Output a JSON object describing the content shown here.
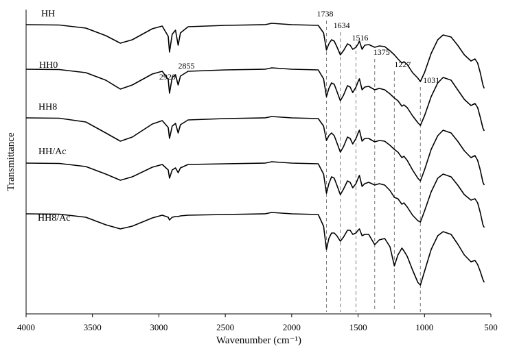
{
  "chart_data": {
    "type": "line",
    "title": "",
    "xlabel": "Wavenumber (cm⁻¹)",
    "ylabel": "Transmittance",
    "xlim": [
      4000,
      500
    ],
    "x_reversed": true,
    "y_ticks": false,
    "grid": false,
    "legend": "none",
    "x_ticks": [
      4000,
      3500,
      3000,
      2500,
      2000,
      1500,
      1000,
      500
    ],
    "x_tick_labels": [
      "4000",
      "3500",
      "3000",
      "2500",
      "2000",
      "1500",
      "1000",
      "500"
    ],
    "reference_lines": [
      {
        "x": 1738,
        "label": "1738"
      },
      {
        "x": 1634,
        "label": "1634"
      },
      {
        "x": 1516,
        "label": "1516"
      },
      {
        "x": 1375,
        "label": "1375"
      },
      {
        "x": 1227,
        "label": "1227"
      },
      {
        "x": 1031,
        "label": "1031"
      }
    ],
    "annotations": [
      {
        "x": 2920,
        "series": "HH",
        "text": "2920"
      },
      {
        "x": 2855,
        "series": "HH",
        "text": "2855"
      }
    ],
    "series": [
      {
        "name": "HH",
        "points": [
          [
            4000,
            0.0
          ],
          [
            3750,
            -0.5
          ],
          [
            3550,
            -5
          ],
          [
            3400,
            -16
          ],
          [
            3290,
            -27
          ],
          [
            3200,
            -22
          ],
          [
            3050,
            -6
          ],
          [
            2975,
            -2
          ],
          [
            2930,
            -17
          ],
          [
            2920,
            -40
          ],
          [
            2900,
            -14
          ],
          [
            2875,
            -8
          ],
          [
            2855,
            -30
          ],
          [
            2838,
            -12
          ],
          [
            2780,
            -3
          ],
          [
            2500,
            -1
          ],
          [
            2200,
            0
          ],
          [
            2150,
            2
          ],
          [
            2000,
            0
          ],
          [
            1800,
            -1
          ],
          [
            1760,
            -12
          ],
          [
            1738,
            -37
          ],
          [
            1720,
            -28
          ],
          [
            1700,
            -22
          ],
          [
            1680,
            -24
          ],
          [
            1660,
            -32
          ],
          [
            1634,
            -44
          ],
          [
            1610,
            -38
          ],
          [
            1580,
            -28
          ],
          [
            1560,
            -30
          ],
          [
            1540,
            -36
          ],
          [
            1516,
            -33
          ],
          [
            1500,
            -28
          ],
          [
            1490,
            -24
          ],
          [
            1470,
            -36
          ],
          [
            1450,
            -30
          ],
          [
            1420,
            -29
          ],
          [
            1375,
            -33
          ],
          [
            1340,
            -31
          ],
          [
            1300,
            -32
          ],
          [
            1260,
            -38
          ],
          [
            1227,
            -44
          ],
          [
            1200,
            -50
          ],
          [
            1170,
            -56
          ],
          [
            1155,
            -54
          ],
          [
            1130,
            -58
          ],
          [
            1090,
            -70
          ],
          [
            1050,
            -78
          ],
          [
            1031,
            -83
          ],
          [
            1000,
            -70
          ],
          [
            950,
            -42
          ],
          [
            900,
            -22
          ],
          [
            860,
            -15
          ],
          [
            800,
            -18
          ],
          [
            750,
            -30
          ],
          [
            700,
            -44
          ],
          [
            650,
            -53
          ],
          [
            620,
            -50
          ],
          [
            600,
            -56
          ],
          [
            580,
            -70
          ],
          [
            560,
            -88
          ],
          [
            550,
            -93
          ]
        ]
      },
      {
        "name": "HH0",
        "points": [
          [
            4000,
            0.0
          ],
          [
            3750,
            -0.5
          ],
          [
            3550,
            -5
          ],
          [
            3400,
            -16
          ],
          [
            3290,
            -29
          ],
          [
            3200,
            -23
          ],
          [
            3050,
            -7
          ],
          [
            2975,
            -3
          ],
          [
            2930,
            -15
          ],
          [
            2920,
            -35
          ],
          [
            2900,
            -12
          ],
          [
            2875,
            -8
          ],
          [
            2855,
            -23
          ],
          [
            2838,
            -10
          ],
          [
            2780,
            -3
          ],
          [
            2500,
            -1
          ],
          [
            2200,
            0
          ],
          [
            2150,
            2
          ],
          [
            2000,
            0
          ],
          [
            1800,
            -1
          ],
          [
            1760,
            -14
          ],
          [
            1738,
            -40
          ],
          [
            1720,
            -28
          ],
          [
            1700,
            -20
          ],
          [
            1680,
            -22
          ],
          [
            1660,
            -32
          ],
          [
            1634,
            -46
          ],
          [
            1610,
            -38
          ],
          [
            1580,
            -24
          ],
          [
            1560,
            -26
          ],
          [
            1540,
            -34
          ],
          [
            1516,
            -26
          ],
          [
            1500,
            -18
          ],
          [
            1490,
            -14
          ],
          [
            1470,
            -30
          ],
          [
            1450,
            -26
          ],
          [
            1420,
            -25
          ],
          [
            1375,
            -30
          ],
          [
            1340,
            -28
          ],
          [
            1300,
            -30
          ],
          [
            1260,
            -36
          ],
          [
            1227,
            -42
          ],
          [
            1200,
            -46
          ],
          [
            1170,
            -54
          ],
          [
            1155,
            -52
          ],
          [
            1130,
            -56
          ],
          [
            1090,
            -68
          ],
          [
            1050,
            -78
          ],
          [
            1031,
            -82
          ],
          [
            1000,
            -68
          ],
          [
            950,
            -40
          ],
          [
            900,
            -20
          ],
          [
            860,
            -12
          ],
          [
            800,
            -16
          ],
          [
            750,
            -30
          ],
          [
            700,
            -44
          ],
          [
            650,
            -53
          ],
          [
            620,
            -50
          ],
          [
            600,
            -56
          ],
          [
            580,
            -70
          ],
          [
            560,
            -86
          ],
          [
            550,
            -90
          ]
        ]
      },
      {
        "name": "HH8",
        "points": [
          [
            4000,
            0.0
          ],
          [
            3750,
            -0.5
          ],
          [
            3550,
            -6
          ],
          [
            3400,
            -22
          ],
          [
            3290,
            -34
          ],
          [
            3200,
            -28
          ],
          [
            3050,
            -9
          ],
          [
            2975,
            -4
          ],
          [
            2930,
            -14
          ],
          [
            2920,
            -30
          ],
          [
            2900,
            -12
          ],
          [
            2875,
            -8
          ],
          [
            2855,
            -22
          ],
          [
            2838,
            -10
          ],
          [
            2780,
            -3
          ],
          [
            2500,
            -1
          ],
          [
            2200,
            0
          ],
          [
            2150,
            2
          ],
          [
            2000,
            0
          ],
          [
            1800,
            -1
          ],
          [
            1760,
            -12
          ],
          [
            1738,
            -33
          ],
          [
            1720,
            -26
          ],
          [
            1700,
            -22
          ],
          [
            1680,
            -26
          ],
          [
            1660,
            -36
          ],
          [
            1634,
            -50
          ],
          [
            1610,
            -42
          ],
          [
            1580,
            -28
          ],
          [
            1560,
            -30
          ],
          [
            1540,
            -38
          ],
          [
            1516,
            -30
          ],
          [
            1500,
            -22
          ],
          [
            1490,
            -18
          ],
          [
            1470,
            -34
          ],
          [
            1450,
            -30
          ],
          [
            1420,
            -30
          ],
          [
            1375,
            -35
          ],
          [
            1340,
            -33
          ],
          [
            1300,
            -34
          ],
          [
            1260,
            -40
          ],
          [
            1227,
            -46
          ],
          [
            1200,
            -50
          ],
          [
            1170,
            -58
          ],
          [
            1155,
            -56
          ],
          [
            1130,
            -62
          ],
          [
            1090,
            -76
          ],
          [
            1050,
            -88
          ],
          [
            1031,
            -92
          ],
          [
            1000,
            -76
          ],
          [
            950,
            -46
          ],
          [
            900,
            -26
          ],
          [
            860,
            -18
          ],
          [
            800,
            -22
          ],
          [
            750,
            -34
          ],
          [
            700,
            -48
          ],
          [
            650,
            -58
          ],
          [
            620,
            -55
          ],
          [
            600,
            -62
          ],
          [
            580,
            -76
          ],
          [
            560,
            -94
          ],
          [
            550,
            -98
          ]
        ]
      },
      {
        "name": "HH/Ac",
        "points": [
          [
            4000,
            0.0
          ],
          [
            3750,
            -0.5
          ],
          [
            3550,
            -5
          ],
          [
            3400,
            -16
          ],
          [
            3290,
            -25
          ],
          [
            3200,
            -20
          ],
          [
            3050,
            -6
          ],
          [
            2975,
            -2
          ],
          [
            2930,
            -10
          ],
          [
            2920,
            -22
          ],
          [
            2900,
            -10
          ],
          [
            2875,
            -7
          ],
          [
            2855,
            -14
          ],
          [
            2838,
            -7
          ],
          [
            2780,
            -2
          ],
          [
            2500,
            -1
          ],
          [
            2200,
            0
          ],
          [
            2150,
            2
          ],
          [
            2000,
            0
          ],
          [
            1800,
            -1
          ],
          [
            1760,
            -16
          ],
          [
            1738,
            -44
          ],
          [
            1720,
            -30
          ],
          [
            1700,
            -20
          ],
          [
            1680,
            -22
          ],
          [
            1660,
            -32
          ],
          [
            1634,
            -46
          ],
          [
            1610,
            -38
          ],
          [
            1580,
            -26
          ],
          [
            1560,
            -28
          ],
          [
            1540,
            -36
          ],
          [
            1516,
            -30
          ],
          [
            1500,
            -22
          ],
          [
            1490,
            -18
          ],
          [
            1470,
            -34
          ],
          [
            1450,
            -30
          ],
          [
            1420,
            -28
          ],
          [
            1375,
            -32
          ],
          [
            1340,
            -30
          ],
          [
            1300,
            -32
          ],
          [
            1260,
            -40
          ],
          [
            1227,
            -50
          ],
          [
            1200,
            -52
          ],
          [
            1170,
            -60
          ],
          [
            1155,
            -58
          ],
          [
            1130,
            -64
          ],
          [
            1090,
            -76
          ],
          [
            1050,
            -84
          ],
          [
            1031,
            -86
          ],
          [
            1000,
            -70
          ],
          [
            950,
            -42
          ],
          [
            900,
            -22
          ],
          [
            860,
            -16
          ],
          [
            800,
            -20
          ],
          [
            750,
            -32
          ],
          [
            700,
            -46
          ],
          [
            650,
            -54
          ],
          [
            620,
            -52
          ],
          [
            600,
            -58
          ],
          [
            580,
            -72
          ],
          [
            560,
            -90
          ],
          [
            550,
            -94
          ]
        ]
      },
      {
        "name": "HH8/Ac",
        "points": [
          [
            4000,
            0.0
          ],
          [
            3750,
            -0.5
          ],
          [
            3550,
            -5
          ],
          [
            3400,
            -16
          ],
          [
            3290,
            -22
          ],
          [
            3200,
            -18
          ],
          [
            3050,
            -6
          ],
          [
            2975,
            -2
          ],
          [
            2930,
            -5
          ],
          [
            2920,
            -9
          ],
          [
            2900,
            -5
          ],
          [
            2875,
            -4
          ],
          [
            2855,
            -4
          ],
          [
            2838,
            -3
          ],
          [
            2780,
            -2
          ],
          [
            2500,
            -1
          ],
          [
            2200,
            0
          ],
          [
            2150,
            2
          ],
          [
            2000,
            0
          ],
          [
            1800,
            -1
          ],
          [
            1760,
            -18
          ],
          [
            1738,
            -52
          ],
          [
            1720,
            -36
          ],
          [
            1700,
            -28
          ],
          [
            1680,
            -28
          ],
          [
            1660,
            -32
          ],
          [
            1634,
            -40
          ],
          [
            1610,
            -34
          ],
          [
            1580,
            -24
          ],
          [
            1560,
            -24
          ],
          [
            1540,
            -30
          ],
          [
            1516,
            -28
          ],
          [
            1500,
            -24
          ],
          [
            1490,
            -22
          ],
          [
            1470,
            -32
          ],
          [
            1450,
            -30
          ],
          [
            1420,
            -30
          ],
          [
            1375,
            -45
          ],
          [
            1340,
            -38
          ],
          [
            1300,
            -36
          ],
          [
            1260,
            -48
          ],
          [
            1227,
            -76
          ],
          [
            1200,
            -60
          ],
          [
            1170,
            -50
          ],
          [
            1155,
            -54
          ],
          [
            1130,
            -62
          ],
          [
            1090,
            -82
          ],
          [
            1050,
            -100
          ],
          [
            1031,
            -104
          ],
          [
            1000,
            -84
          ],
          [
            950,
            -52
          ],
          [
            900,
            -32
          ],
          [
            860,
            -26
          ],
          [
            800,
            -30
          ],
          [
            750,
            -44
          ],
          [
            700,
            -60
          ],
          [
            650,
            -70
          ],
          [
            620,
            -68
          ],
          [
            600,
            -74
          ],
          [
            580,
            -84
          ],
          [
            560,
            -96
          ],
          [
            550,
            -100
          ]
        ]
      }
    ]
  }
}
